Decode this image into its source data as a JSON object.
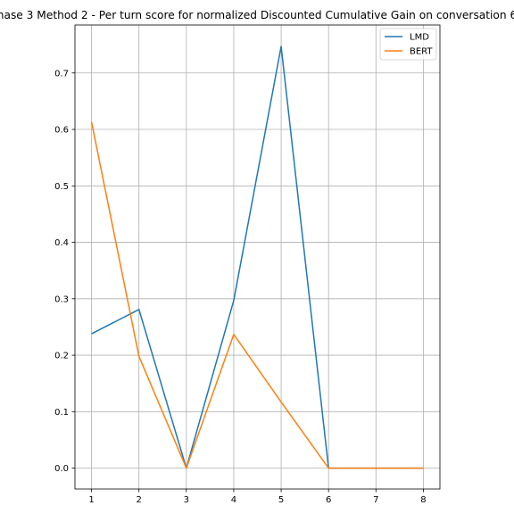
{
  "chart_data": {
    "type": "line",
    "title": "hase 3 Method 2 - Per turn score for normalized Discounted Cumulative Gain on conversation 6",
    "xlabel": "",
    "ylabel": "",
    "x": [
      1,
      2,
      3,
      4,
      5,
      6,
      7,
      8
    ],
    "xlim": [
      0.65,
      8.35
    ],
    "ylim": [
      -0.037,
      0.785
    ],
    "xticks": [
      1,
      2,
      3,
      4,
      5,
      6,
      7,
      8
    ],
    "yticks": [
      0.0,
      0.1,
      0.2,
      0.3,
      0.4,
      0.5,
      0.6,
      0.7
    ],
    "ytick_labels": [
      "0.0",
      "0.1",
      "0.2",
      "0.3",
      "0.4",
      "0.5",
      "0.6",
      "0.7"
    ],
    "grid": true,
    "legend_position": "top-right",
    "series": [
      {
        "name": "LMD",
        "color": "#1f77b4",
        "values": [
          0.238,
          0.281,
          0.0,
          0.297,
          0.747,
          0.0,
          0.0,
          0.0
        ]
      },
      {
        "name": "BERT",
        "color": "#ff7f0e",
        "values": [
          0.613,
          0.198,
          0.0,
          0.237,
          0.117,
          0.0,
          0.0,
          0.0
        ]
      }
    ]
  }
}
